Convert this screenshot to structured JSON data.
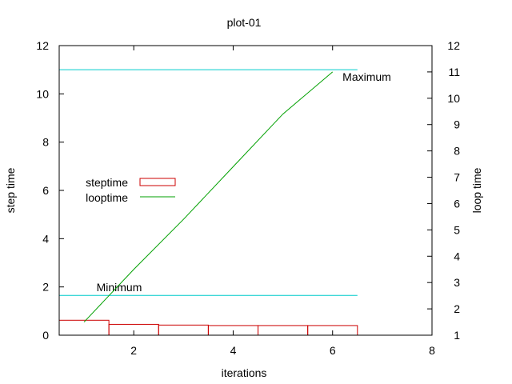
{
  "chart_data": {
    "type": "bar",
    "title": "plot-01",
    "xlabel": "iterations",
    "ylabel": "step time",
    "y2label": "loop time",
    "xlim": [
      0.5,
      8
    ],
    "ylim": [
      0,
      12
    ],
    "y2lim": [
      1,
      12
    ],
    "xticks": [
      2,
      4,
      6,
      8
    ],
    "yticks": [
      0,
      2,
      4,
      6,
      8,
      10,
      12
    ],
    "y2ticks": [
      1,
      2,
      3,
      4,
      5,
      6,
      7,
      8,
      9,
      10,
      11,
      12
    ],
    "legend_position": "center-left",
    "series": [
      {
        "name": "steptime",
        "type": "bar",
        "axis": "y",
        "color": "#cc0000",
        "x": [
          1,
          2,
          3,
          4,
          5,
          6
        ],
        "values": [
          0.62,
          0.45,
          0.42,
          0.4,
          0.4,
          0.4
        ]
      },
      {
        "name": "looptime",
        "type": "line",
        "axis": "y2",
        "color": "#00a000",
        "x": [
          1,
          2,
          3,
          4,
          5,
          6
        ],
        "values": [
          1.5,
          3.5,
          5.4,
          7.4,
          9.4,
          11.0
        ]
      }
    ],
    "reference_lines": [
      {
        "label": "Maximum",
        "axis": "y",
        "value": 11.0,
        "color": "#00cccc"
      },
      {
        "label": "Minimum",
        "axis": "y",
        "value": 1.65,
        "color": "#00cccc"
      }
    ]
  }
}
